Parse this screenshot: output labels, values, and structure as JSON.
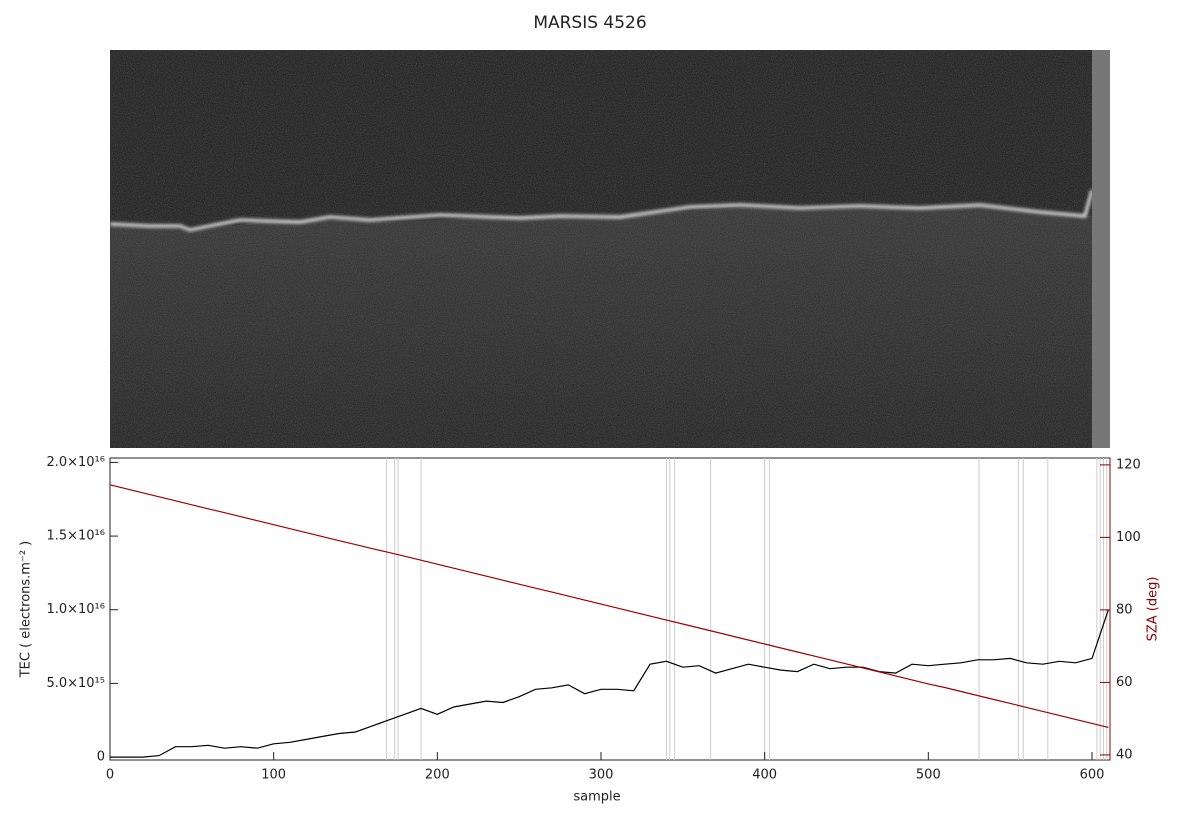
{
  "chart_data": {
    "type": "line",
    "title": "MARSIS 4526",
    "xlabel": "sample",
    "ylabel": "TEC ( electrons.m⁻² )",
    "y2label": "SZA (deg)",
    "xlim": [
      0,
      611
    ],
    "xticks": [
      0,
      100,
      200,
      300,
      400,
      500,
      600
    ],
    "ylim": [
      -200000000000000.0,
      2.03e+16
    ],
    "yticks": [
      0,
      {
        "value": 5000000000000000.0,
        "label": "5.0×10¹⁵"
      },
      {
        "value": 1e+16,
        "label": "1.0×10¹⁶"
      },
      {
        "value": 1.5e+16,
        "label": "1.5×10¹⁶"
      },
      {
        "value": 2e+16,
        "label": "2.0×10¹⁶"
      }
    ],
    "y2lim": [
      38.6,
      121.9
    ],
    "y2ticks": [
      40,
      60,
      80,
      100,
      120
    ],
    "y2color": "#8b0000",
    "x": [
      0,
      10,
      20,
      30,
      40,
      50,
      60,
      70,
      80,
      90,
      100,
      110,
      120,
      130,
      140,
      150,
      160,
      170,
      180,
      190,
      200,
      210,
      220,
      230,
      240,
      250,
      260,
      270,
      280,
      290,
      300,
      310,
      320,
      330,
      340,
      350,
      360,
      370,
      380,
      390,
      400,
      410,
      420,
      430,
      440,
      450,
      460,
      470,
      480,
      490,
      500,
      510,
      520,
      530,
      540,
      550,
      560,
      570,
      580,
      590,
      600,
      610
    ],
    "series": [
      {
        "color": "#000000",
        "values": [
          0,
          0,
          0,
          100000000000000.0,
          700000000000000.0,
          700000000000000.0,
          800000000000000.0,
          600000000000000.0,
          700000000000000.0,
          600000000000000.0,
          900000000000000.0,
          1000000000000000.0,
          1200000000000000.0,
          1400000000000000.0,
          1600000000000000.0,
          1700000000000000.0,
          2100000000000000.0,
          2500000000000000.0,
          2900000000000000.0,
          3300000000000000.0,
          2900000000000000.0,
          3400000000000000.0,
          3600000000000000.0,
          3800000000000000.0,
          3700000000000000.0,
          4100000000000000.0,
          4600000000000000.0,
          4700000000000000.0,
          4900000000000000.0,
          4300000000000000.0,
          4600000000000000.0,
          4600000000000000.0,
          4500000000000000.0,
          6300000000000000.0,
          6500000000000000.0,
          6100000000000000.0,
          6200000000000000.0,
          5700000000000000.0,
          6000000000000000.0,
          6300000000000000.0,
          6100000000000000.0,
          5900000000000000.0,
          5800000000000000.0,
          6300000000000000.0,
          6000000000000000.0,
          6100000000000000.0,
          6100000000000000.0,
          5800000000000000.0,
          5700000000000000.0,
          6300000000000000.0,
          6200000000000000.0,
          6300000000000000.0,
          6400000000000000.0,
          6600000000000000.0,
          6600000000000000.0,
          6700000000000000.0,
          6400000000000000.0,
          6300000000000000.0,
          6500000000000000.0,
          6400000000000000.0,
          6700000000000000.0,
          1e+16
        ]
      },
      {
        "color": "#a00000",
        "axis": "y2",
        "values": [
          114.5,
          113.4,
          112.3,
          111.2,
          110.1,
          109.0,
          107.9,
          106.8,
          105.7,
          104.6,
          103.5,
          102.4,
          101.3,
          100.2,
          99.1,
          98.0,
          96.9,
          95.9,
          94.8,
          93.7,
          92.6,
          91.5,
          90.4,
          89.3,
          88.2,
          87.1,
          86.0,
          84.9,
          83.8,
          82.7,
          81.6,
          80.5,
          79.4,
          78.3,
          77.2,
          76.1,
          75.0,
          73.9,
          72.8,
          71.7,
          70.6,
          69.5,
          68.4,
          67.3,
          66.2,
          65.1,
          64.0,
          62.9,
          61.8,
          60.7,
          59.6,
          58.6,
          57.5,
          56.4,
          55.3,
          54.2,
          53.1,
          52.0,
          50.9,
          49.8,
          48.7,
          47.6
        ]
      }
    ],
    "vertical_lines": {
      "color": "#cccccc",
      "x": [
        169,
        174,
        176,
        190,
        340,
        342,
        345,
        367,
        400,
        403,
        531,
        555,
        558,
        573,
        603,
        605,
        607,
        609
      ]
    }
  }
}
